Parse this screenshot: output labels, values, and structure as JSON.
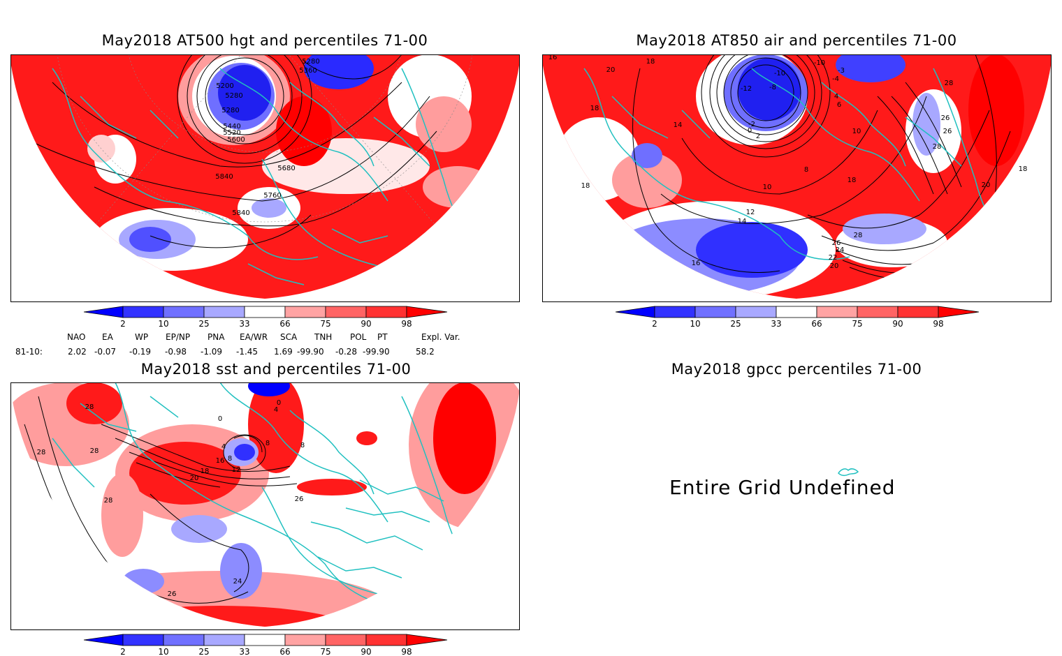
{
  "panels": [
    {
      "id": "hgt",
      "title": "May2018 AT500 hgt and percentiles 71-00",
      "contour_labels": [
        "5200",
        "5280",
        "5280",
        "5280",
        "5360",
        "5440",
        "5520",
        "5600",
        "5680",
        "5760",
        "5840",
        "5840"
      ]
    },
    {
      "id": "air",
      "title": "May2018 AT850 air and percentiles 71-00",
      "contour_labels": [
        "16",
        "18",
        "20",
        "18",
        "-10",
        "-3",
        "-4",
        "-12",
        "-8",
        "-10",
        "4",
        "6",
        "-2",
        "0",
        "2",
        "10",
        "14",
        "8",
        "10",
        "12",
        "14",
        "16",
        "28",
        "26",
        "26",
        "28",
        "18",
        "18",
        "20",
        "18",
        "28",
        "26",
        "24",
        "22",
        "20"
      ]
    },
    {
      "id": "sst",
      "title": "May2018 sst and percentiles 71-00",
      "contour_labels": [
        "28",
        "28",
        "28",
        "28",
        "20",
        "18",
        "16",
        "12",
        "8",
        "4",
        "0",
        "0",
        "4",
        "8",
        "8",
        "24",
        "26",
        "26"
      ]
    },
    {
      "id": "gpcc",
      "title": "May2018 gpcc percentiles 71-00",
      "message": "Entire Grid Undefined"
    }
  ],
  "colorbar": {
    "ticks": [
      "2",
      "10",
      "25",
      "33",
      "66",
      "75",
      "90",
      "98"
    ],
    "colors": [
      "#0000ff",
      "#3232ff",
      "#7070ff",
      "#a8a8ff",
      "#ffffff",
      "#ffa3a3",
      "#ff6464",
      "#ff3232",
      "#ff0000"
    ]
  },
  "indices": {
    "names": [
      "NAO",
      "EA",
      "WP",
      "EP/NP",
      "PNA",
      "EA/WR",
      "SCA",
      "TNH",
      "POL",
      "PT",
      "Expl. Var."
    ],
    "period": "81-10:",
    "values": [
      "2.02",
      "-0.07",
      "-0.19",
      "-0.98",
      "-1.09",
      "-1.45",
      "1.69",
      "-99.90",
      "-0.28",
      "-99.90",
      "58.2"
    ]
  },
  "colors": {
    "land_outline": "#20c0c0",
    "contour": "#000000",
    "red": "#ff0000",
    "blue": "#0000ff"
  }
}
